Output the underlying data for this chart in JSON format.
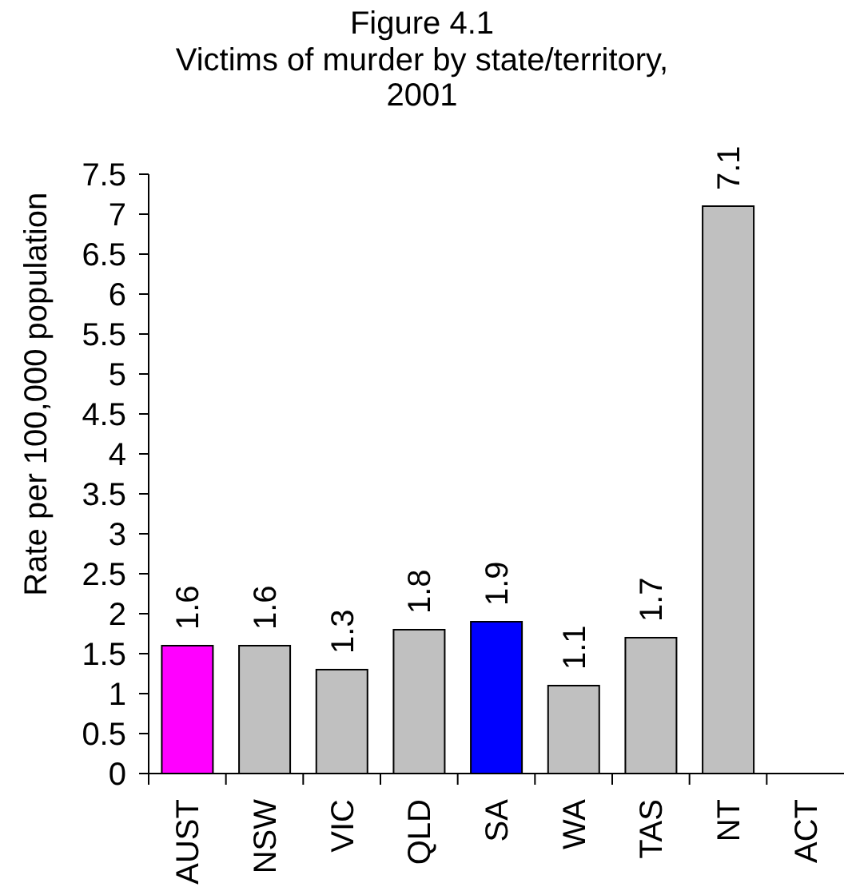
{
  "chart_data": {
    "type": "bar",
    "title": "Figure 4.1",
    "subtitle": "Victims of murder by state/territory, 2001",
    "ylabel": "Rate per 100,000 population",
    "categories": [
      "AUST",
      "NSW",
      "VIC",
      "QLD",
      "SA",
      "WA",
      "TAS",
      "NT",
      "ACT"
    ],
    "values": [
      1.6,
      1.6,
      1.3,
      1.8,
      1.9,
      1.1,
      1.7,
      7.1,
      null
    ],
    "colors": [
      "#ff00ff",
      "#c0c0c0",
      "#c0c0c0",
      "#c0c0c0",
      "#0000ff",
      "#c0c0c0",
      "#c0c0c0",
      "#c0c0c0",
      "#c0c0c0"
    ],
    "ylim": [
      0,
      7.5
    ],
    "yticks": [
      0,
      0.5,
      1,
      1.5,
      2,
      2.5,
      3,
      3.5,
      4,
      4.5,
      5,
      5.5,
      6,
      6.5,
      7,
      7.5
    ],
    "data_labels": true
  }
}
